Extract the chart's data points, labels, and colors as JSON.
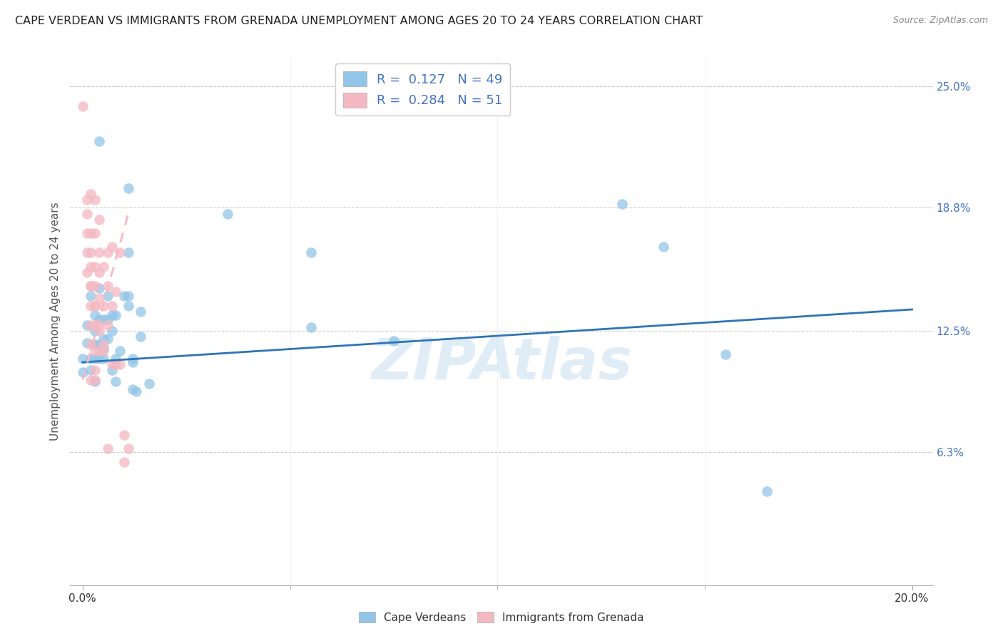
{
  "title": "CAPE VERDEAN VS IMMIGRANTS FROM GRENADA UNEMPLOYMENT AMONG AGES 20 TO 24 YEARS CORRELATION CHART",
  "source": "Source: ZipAtlas.com",
  "ylabel": "Unemployment Among Ages 20 to 24 years",
  "xlabel_ticks": [
    "0.0%",
    "20.0%"
  ],
  "xlabel_vals": [
    0.0,
    0.2
  ],
  "xlabel_minor_vals": [
    0.05,
    0.1,
    0.15
  ],
  "ylabel_ticks_right": [
    "25.0%",
    "18.8%",
    "12.5%",
    "6.3%"
  ],
  "ylabel_vals_right": [
    0.25,
    0.188,
    0.125,
    0.063
  ],
  "xlim": [
    -0.003,
    0.205
  ],
  "ylim": [
    -0.005,
    0.265
  ],
  "blue_color": "#92c5e8",
  "pink_color": "#f4b8c1",
  "trendline_blue_color": "#2e75b6",
  "trendline_pink_color": "#e05a6a",
  "watermark": "ZIPAtlas",
  "blue_scatter": [
    [
      0.0,
      0.111
    ],
    [
      0.0,
      0.104
    ],
    [
      0.001,
      0.128
    ],
    [
      0.001,
      0.119
    ],
    [
      0.002,
      0.143
    ],
    [
      0.002,
      0.111
    ],
    [
      0.002,
      0.105
    ],
    [
      0.003,
      0.133
    ],
    [
      0.003,
      0.125
    ],
    [
      0.003,
      0.118
    ],
    [
      0.003,
      0.111
    ],
    [
      0.003,
      0.099
    ],
    [
      0.004,
      0.222
    ],
    [
      0.004,
      0.147
    ],
    [
      0.004,
      0.131
    ],
    [
      0.004,
      0.118
    ],
    [
      0.004,
      0.111
    ],
    [
      0.005,
      0.131
    ],
    [
      0.005,
      0.121
    ],
    [
      0.005,
      0.116
    ],
    [
      0.005,
      0.111
    ],
    [
      0.006,
      0.143
    ],
    [
      0.006,
      0.131
    ],
    [
      0.006,
      0.121
    ],
    [
      0.007,
      0.133
    ],
    [
      0.007,
      0.125
    ],
    [
      0.007,
      0.105
    ],
    [
      0.008,
      0.133
    ],
    [
      0.008,
      0.111
    ],
    [
      0.008,
      0.099
    ],
    [
      0.009,
      0.115
    ],
    [
      0.01,
      0.143
    ],
    [
      0.011,
      0.198
    ],
    [
      0.011,
      0.165
    ],
    [
      0.011,
      0.143
    ],
    [
      0.011,
      0.138
    ],
    [
      0.012,
      0.111
    ],
    [
      0.012,
      0.095
    ],
    [
      0.012,
      0.109
    ],
    [
      0.013,
      0.094
    ],
    [
      0.014,
      0.135
    ],
    [
      0.014,
      0.122
    ],
    [
      0.016,
      0.098
    ],
    [
      0.035,
      0.185
    ],
    [
      0.055,
      0.165
    ],
    [
      0.055,
      0.127
    ],
    [
      0.075,
      0.12
    ],
    [
      0.13,
      0.19
    ],
    [
      0.14,
      0.168
    ],
    [
      0.155,
      0.113
    ],
    [
      0.165,
      0.043
    ]
  ],
  "pink_scatter": [
    [
      0.0,
      0.24
    ],
    [
      0.001,
      0.192
    ],
    [
      0.001,
      0.175
    ],
    [
      0.001,
      0.185
    ],
    [
      0.001,
      0.165
    ],
    [
      0.001,
      0.155
    ],
    [
      0.002,
      0.195
    ],
    [
      0.002,
      0.175
    ],
    [
      0.002,
      0.165
    ],
    [
      0.002,
      0.158
    ],
    [
      0.002,
      0.148
    ],
    [
      0.002,
      0.138
    ],
    [
      0.002,
      0.128
    ],
    [
      0.002,
      0.118
    ],
    [
      0.002,
      0.1
    ],
    [
      0.003,
      0.192
    ],
    [
      0.003,
      0.175
    ],
    [
      0.003,
      0.158
    ],
    [
      0.003,
      0.148
    ],
    [
      0.003,
      0.138
    ],
    [
      0.003,
      0.128
    ],
    [
      0.003,
      0.115
    ],
    [
      0.003,
      0.105
    ],
    [
      0.003,
      0.138
    ],
    [
      0.004,
      0.182
    ],
    [
      0.004,
      0.165
    ],
    [
      0.004,
      0.155
    ],
    [
      0.004,
      0.142
    ],
    [
      0.004,
      0.128
    ],
    [
      0.004,
      0.115
    ],
    [
      0.005,
      0.158
    ],
    [
      0.005,
      0.138
    ],
    [
      0.005,
      0.118
    ],
    [
      0.006,
      0.165
    ],
    [
      0.006,
      0.148
    ],
    [
      0.006,
      0.128
    ],
    [
      0.007,
      0.168
    ],
    [
      0.007,
      0.138
    ],
    [
      0.007,
      0.108
    ],
    [
      0.008,
      0.145
    ],
    [
      0.008,
      0.108
    ],
    [
      0.009,
      0.165
    ],
    [
      0.009,
      0.108
    ],
    [
      0.01,
      0.072
    ],
    [
      0.01,
      0.058
    ],
    [
      0.011,
      0.065
    ],
    [
      0.004,
      0.125
    ],
    [
      0.003,
      0.1
    ],
    [
      0.002,
      0.148
    ],
    [
      0.005,
      0.115
    ],
    [
      0.006,
      0.065
    ]
  ],
  "blue_trendline_x": [
    0.0,
    0.2
  ],
  "blue_trendline_y": [
    0.109,
    0.136
  ],
  "pink_trendline_x": [
    0.0,
    0.011
  ],
  "pink_trendline_y": [
    0.1,
    0.185
  ]
}
